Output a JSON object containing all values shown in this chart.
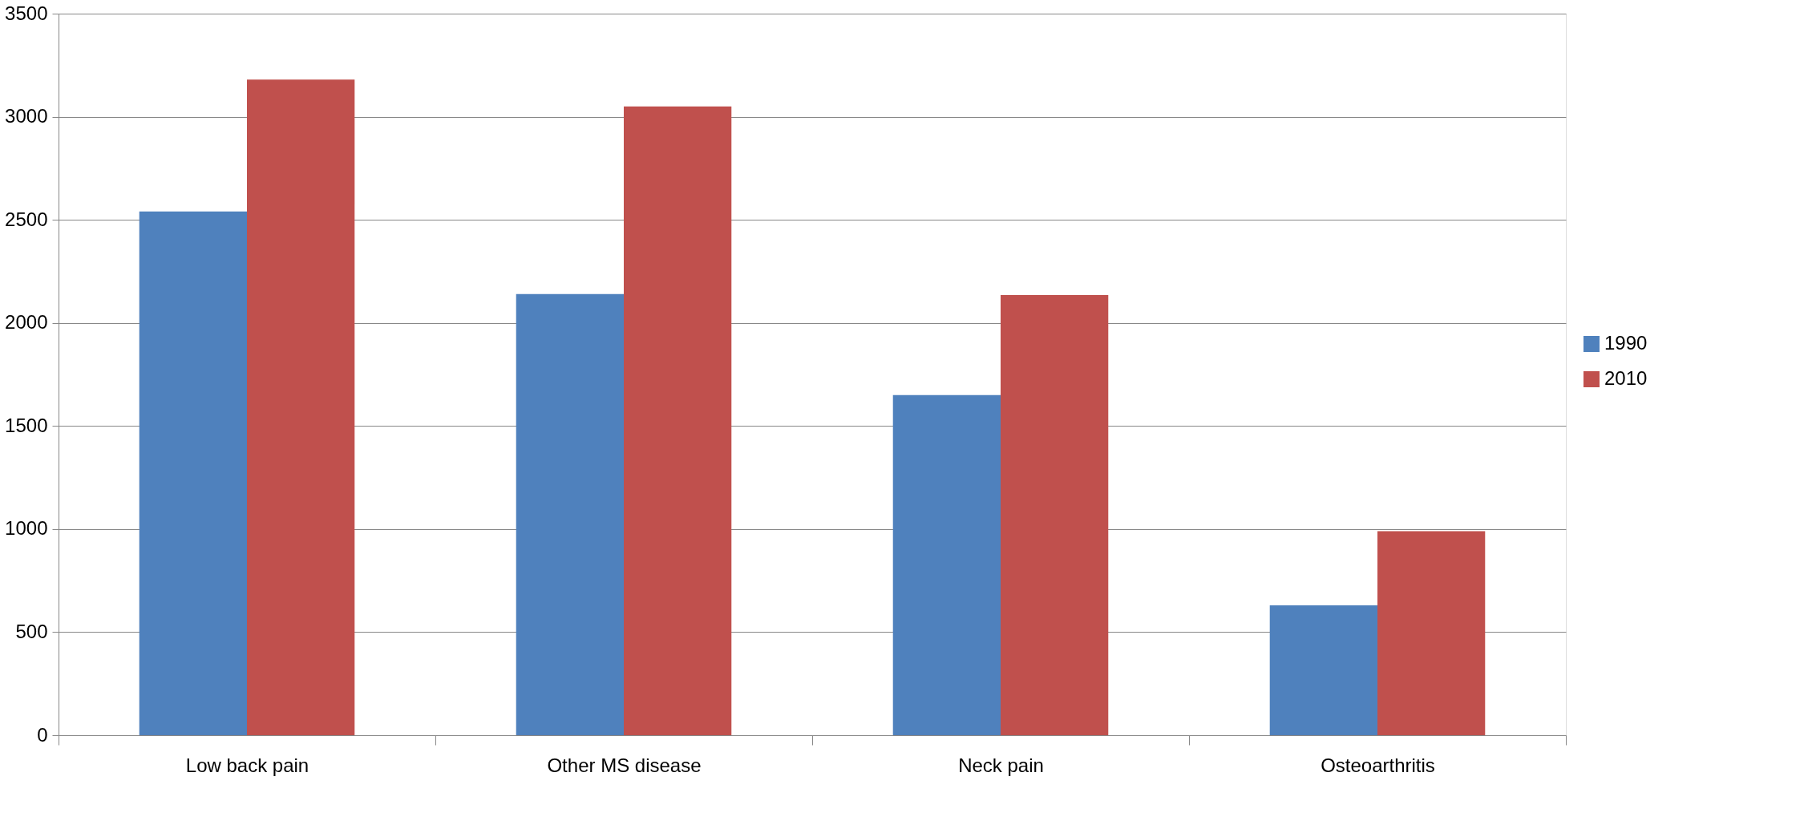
{
  "chart_data": {
    "type": "bar",
    "categories": [
      "Low back pain",
      "Other MS disease",
      "Neck pain",
      "Osteoarthritis"
    ],
    "series": [
      {
        "name": "1990",
        "color": "#4f81bd",
        "values": [
          2540,
          2140,
          1650,
          630
        ]
      },
      {
        "name": "2010",
        "color": "#c0504d",
        "values": [
          3180,
          3050,
          2135,
          990
        ]
      }
    ],
    "ylim": [
      0,
      3500
    ],
    "yticks": [
      0,
      500,
      1000,
      1500,
      2000,
      2500,
      3000,
      3500
    ],
    "grid": "y",
    "legend": "right"
  }
}
